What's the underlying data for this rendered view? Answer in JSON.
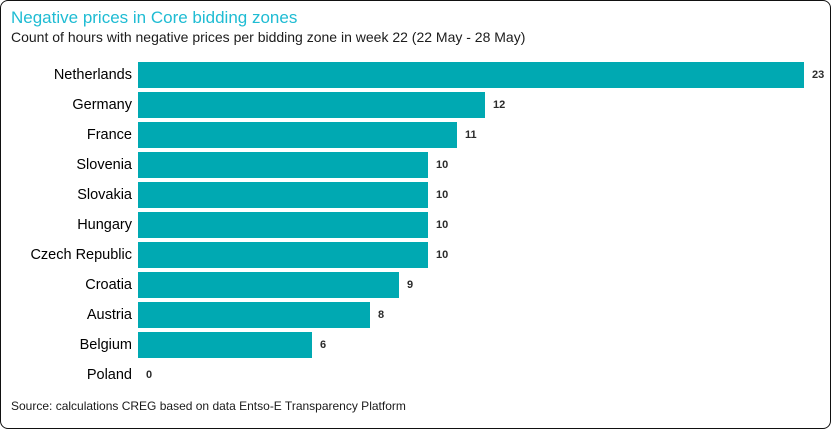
{
  "header": {
    "title": "Negative prices in Core bidding zones",
    "subtitle": "Count of hours with negative prices per bidding zone in week 22 (22 May - 28 May)",
    "title_color": "#1fbcd3"
  },
  "chart_data": {
    "type": "bar",
    "orientation": "horizontal",
    "title": "Negative prices in Core bidding zones",
    "subtitle": "Count of hours with negative prices per bidding zone in week 22 (22 May - 28 May)",
    "categories": [
      "Netherlands",
      "Germany",
      "France",
      "Slovenia",
      "Slovakia",
      "Hungary",
      "Czech Republic",
      "Croatia",
      "Austria",
      "Belgium",
      "Poland"
    ],
    "values": [
      23,
      12,
      11,
      10,
      10,
      10,
      10,
      9,
      8,
      6,
      0
    ],
    "xlim": [
      0,
      23
    ],
    "bar_color": "#00a9b2",
    "value_labels_shown": true,
    "grid": false,
    "legend": false
  },
  "footer": {
    "source": "Source: calculations CREG based on data Entso-E Transparency Platform"
  }
}
